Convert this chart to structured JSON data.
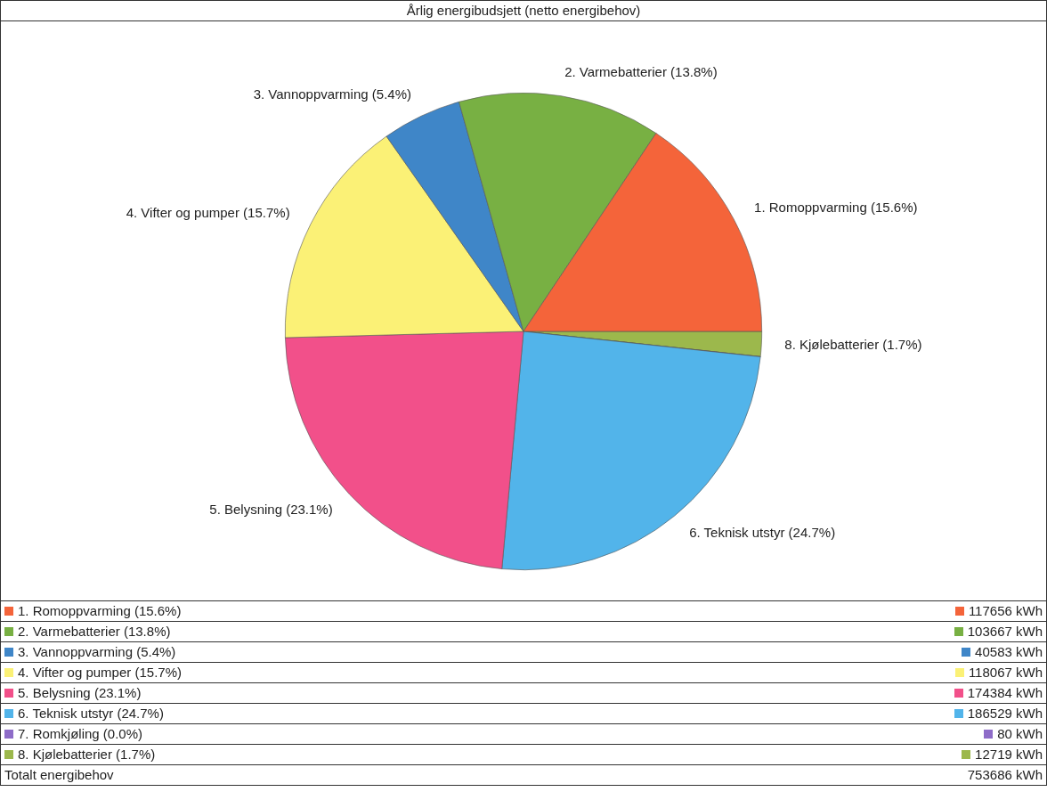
{
  "chart_data": {
    "type": "pie",
    "title": "Årlig energibudsjett (netto energibehov)",
    "categories": [
      "1. Romoppvarming (15.6%)",
      "2. Varmebatterier (13.8%)",
      "3. Vannoppvarming (5.4%)",
      "4. Vifter og pumper (15.7%)",
      "5. Belysning (23.1%)",
      "6. Teknisk utstyr (24.7%)",
      "7. Romkjøling (0.0%)",
      "8. Kjølebatterier (1.7%)"
    ],
    "values": [
      117656,
      103667,
      40583,
      118067,
      174384,
      186529,
      80,
      12719
    ],
    "colors": [
      "#f4643a",
      "#78b043",
      "#3f86c8",
      "#fbf176",
      "#f2508a",
      "#52b4ea",
      "#8e6cc8",
      "#9cb84c"
    ],
    "value_labels": [
      "117656 kWh",
      "103667 kWh",
      "40583 kWh",
      "118067 kWh",
      "174384 kWh",
      "186529 kWh",
      "80 kWh",
      "12719 kWh"
    ],
    "legend": "bottom",
    "annotations": [
      "Totalt energibehov",
      "753686 kWh"
    ]
  }
}
